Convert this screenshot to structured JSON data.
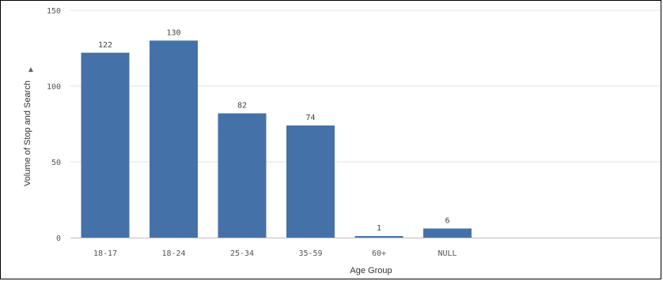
{
  "chart_data": {
    "type": "bar",
    "categories": [
      "18-17",
      "18-24",
      "25-34",
      "35-59",
      "60+",
      "NULL"
    ],
    "values": [
      122,
      130,
      82,
      74,
      1,
      6
    ],
    "data_labels": [
      "122",
      "130",
      "82",
      "74",
      "1",
      "6"
    ],
    "xlabel": "Age Group",
    "ylabel": "Volume of Stop and Search",
    "ylim": [
      0,
      150
    ],
    "yticks": [
      0,
      50,
      100,
      150
    ],
    "grid": true,
    "bar_color": "#4472a8",
    "legend": "none"
  }
}
